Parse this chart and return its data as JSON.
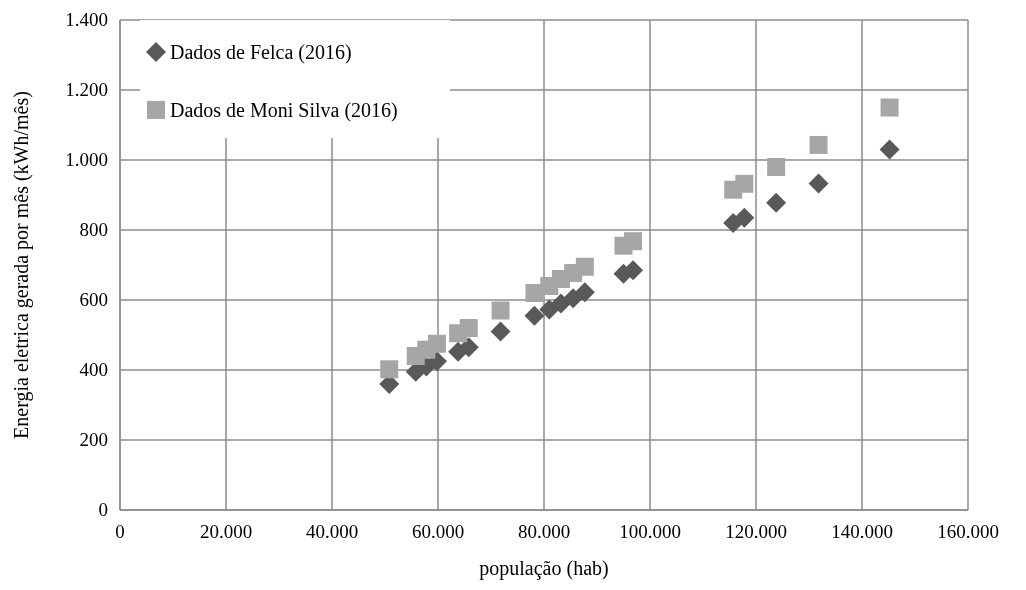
{
  "chart_data": {
    "type": "scatter",
    "xlabel": "população (hab)",
    "ylabel": "Energia eletrica gerada por mês (kWh/mês)",
    "xlim": [
      0,
      160000
    ],
    "xticks": [
      0,
      {
        "value": 20000,
        "label": "20.000"
      },
      {
        "value": 40000,
        "label": "40.000"
      },
      {
        "value": 60000,
        "label": "60.000"
      },
      {
        "value": 80000,
        "label": "80.000"
      },
      {
        "value": 100000,
        "label": "100.000"
      },
      {
        "value": 120000,
        "label": "120.000"
      },
      {
        "value": 140000,
        "label": "140.000"
      },
      {
        "value": 160000,
        "label": "160.000"
      }
    ],
    "ylim": [
      0,
      1400
    ],
    "yticks": [
      0,
      200,
      400,
      600,
      800,
      {
        "value": 1000,
        "label": "1.000"
      },
      {
        "value": 1200,
        "label": "1.200"
      },
      {
        "value": 1400,
        "label": "1.400"
      }
    ],
    "grid": true,
    "legend": "top left",
    "series": [
      {
        "name": "Dados de Felca (2016)",
        "color": "#595959",
        "marker": "diamond",
        "x": [
          50800,
          55800,
          57800,
          59800,
          63800,
          65800,
          71800,
          78200,
          81000,
          83200,
          85500,
          87700,
          95000,
          96800,
          115700,
          117800,
          123800,
          131800,
          145200
        ],
        "values": [
          360,
          395,
          410,
          425,
          452,
          465,
          510,
          555,
          573,
          590,
          605,
          622,
          675,
          685,
          820,
          835,
          878,
          933,
          1030
        ]
      },
      {
        "name": "Dados de Moni Silva (2016)",
        "color": "#a6a6a6",
        "marker": "square",
        "x": [
          50800,
          55800,
          57800,
          59800,
          63800,
          65800,
          71800,
          78200,
          81000,
          83200,
          85500,
          87700,
          95000,
          96800,
          115700,
          117800,
          123800,
          131800,
          145200
        ],
        "values": [
          402,
          440,
          458,
          475,
          505,
          520,
          570,
          620,
          640,
          660,
          677,
          695,
          755,
          768,
          915,
          932,
          980,
          1043,
          1150
        ]
      }
    ]
  }
}
